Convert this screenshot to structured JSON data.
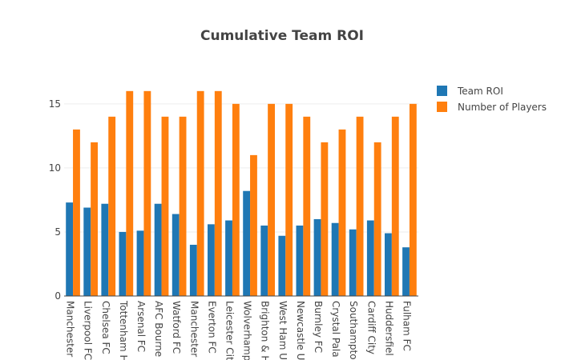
{
  "chart_data": {
    "type": "bar",
    "title": "Cumulative Team ROI",
    "xlabel": "",
    "ylabel": "",
    "ylim": [
      0,
      17.8
    ],
    "yticks": [
      0,
      5,
      10,
      15
    ],
    "grid": true,
    "legend_position": "top-right",
    "categories": [
      "Manchester",
      "Liverpool FC",
      "Chelsea FC",
      "Tottenham H",
      "Arsenal FC",
      "AFC Bourne",
      "Watford FC",
      "Manchester",
      "Everton FC",
      "Leicester Cit",
      "Wolverhamp",
      "Brighton & H",
      "West Ham U",
      "Newcastle U",
      "Burnley FC",
      "Crystal Pala",
      "Southampto",
      "Cardiff City",
      "Huddersfiel",
      "Fulham FC"
    ],
    "series": [
      {
        "name": "Team ROI",
        "color": "#1f77b4",
        "values": [
          7.3,
          6.9,
          7.2,
          5.0,
          5.1,
          7.2,
          6.4,
          4.0,
          5.6,
          5.9,
          8.2,
          5.5,
          4.7,
          5.5,
          6.0,
          5.7,
          5.2,
          5.9,
          4.9,
          3.8
        ]
      },
      {
        "name": "Number of Players",
        "color": "#ff7f0e",
        "values": [
          13,
          12,
          14,
          16,
          16,
          14,
          14,
          16,
          16,
          15,
          11,
          15,
          15,
          14,
          12,
          13,
          14,
          12,
          14,
          15
        ]
      }
    ]
  }
}
